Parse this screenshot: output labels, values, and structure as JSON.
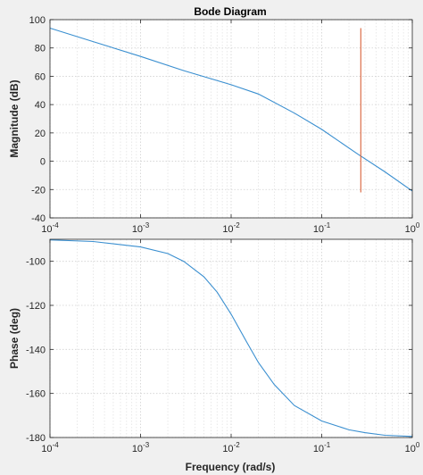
{
  "chart_data": {
    "type": "line",
    "title": "Bode Diagram",
    "xlabel": "Frequency (rad/s)",
    "xscale": "log",
    "grid": "major and minor, dotted",
    "x_tick_labels": [
      "10^-4",
      "10^-3",
      "10^-2",
      "10^-1",
      "10^0"
    ],
    "panels": [
      {
        "name": "magnitude",
        "ylabel": "Magnitude (dB)",
        "xlim": [
          0.0001,
          1
        ],
        "ylim": [
          -40,
          100
        ],
        "yticks": [
          -40,
          -20,
          0,
          20,
          40,
          60,
          80,
          100
        ],
        "series": [
          {
            "color": "#3a8fd0",
            "x": [
              0.0001,
              0.0003,
              0.001,
              0.003,
              0.01,
              0.02,
              0.05,
              0.1,
              0.25,
              0.5,
              1
            ],
            "y": [
              94,
              84.5,
              74,
              64,
              54,
              47.5,
              34,
              22.5,
              5,
              -7.5,
              -21
            ]
          },
          {
            "color": "#d9633a",
            "x": [
              0.27,
              0.27
            ],
            "y": [
              -22,
              94
            ]
          }
        ]
      },
      {
        "name": "phase",
        "ylabel": "Phase (deg)",
        "xlim": [
          0.0001,
          1
        ],
        "ylim": [
          -180,
          -90
        ],
        "yticks": [
          -180,
          -160,
          -140,
          -120,
          -100
        ],
        "series": [
          {
            "color": "#3a8fd0",
            "x": [
              0.0001,
              0.0003,
              0.001,
              0.002,
              0.003,
              0.005,
              0.007,
              0.01,
              0.015,
              0.02,
              0.03,
              0.05,
              0.1,
              0.2,
              0.3,
              0.5,
              1
            ],
            "y": [
              -90.3,
              -91,
              -93.5,
              -96.5,
              -100,
              -107,
              -114,
              -124,
              -137,
              -146,
              -156,
              -165.5,
              -172.5,
              -176.5,
              -177.8,
              -179,
              -179.5
            ]
          }
        ]
      }
    ]
  }
}
